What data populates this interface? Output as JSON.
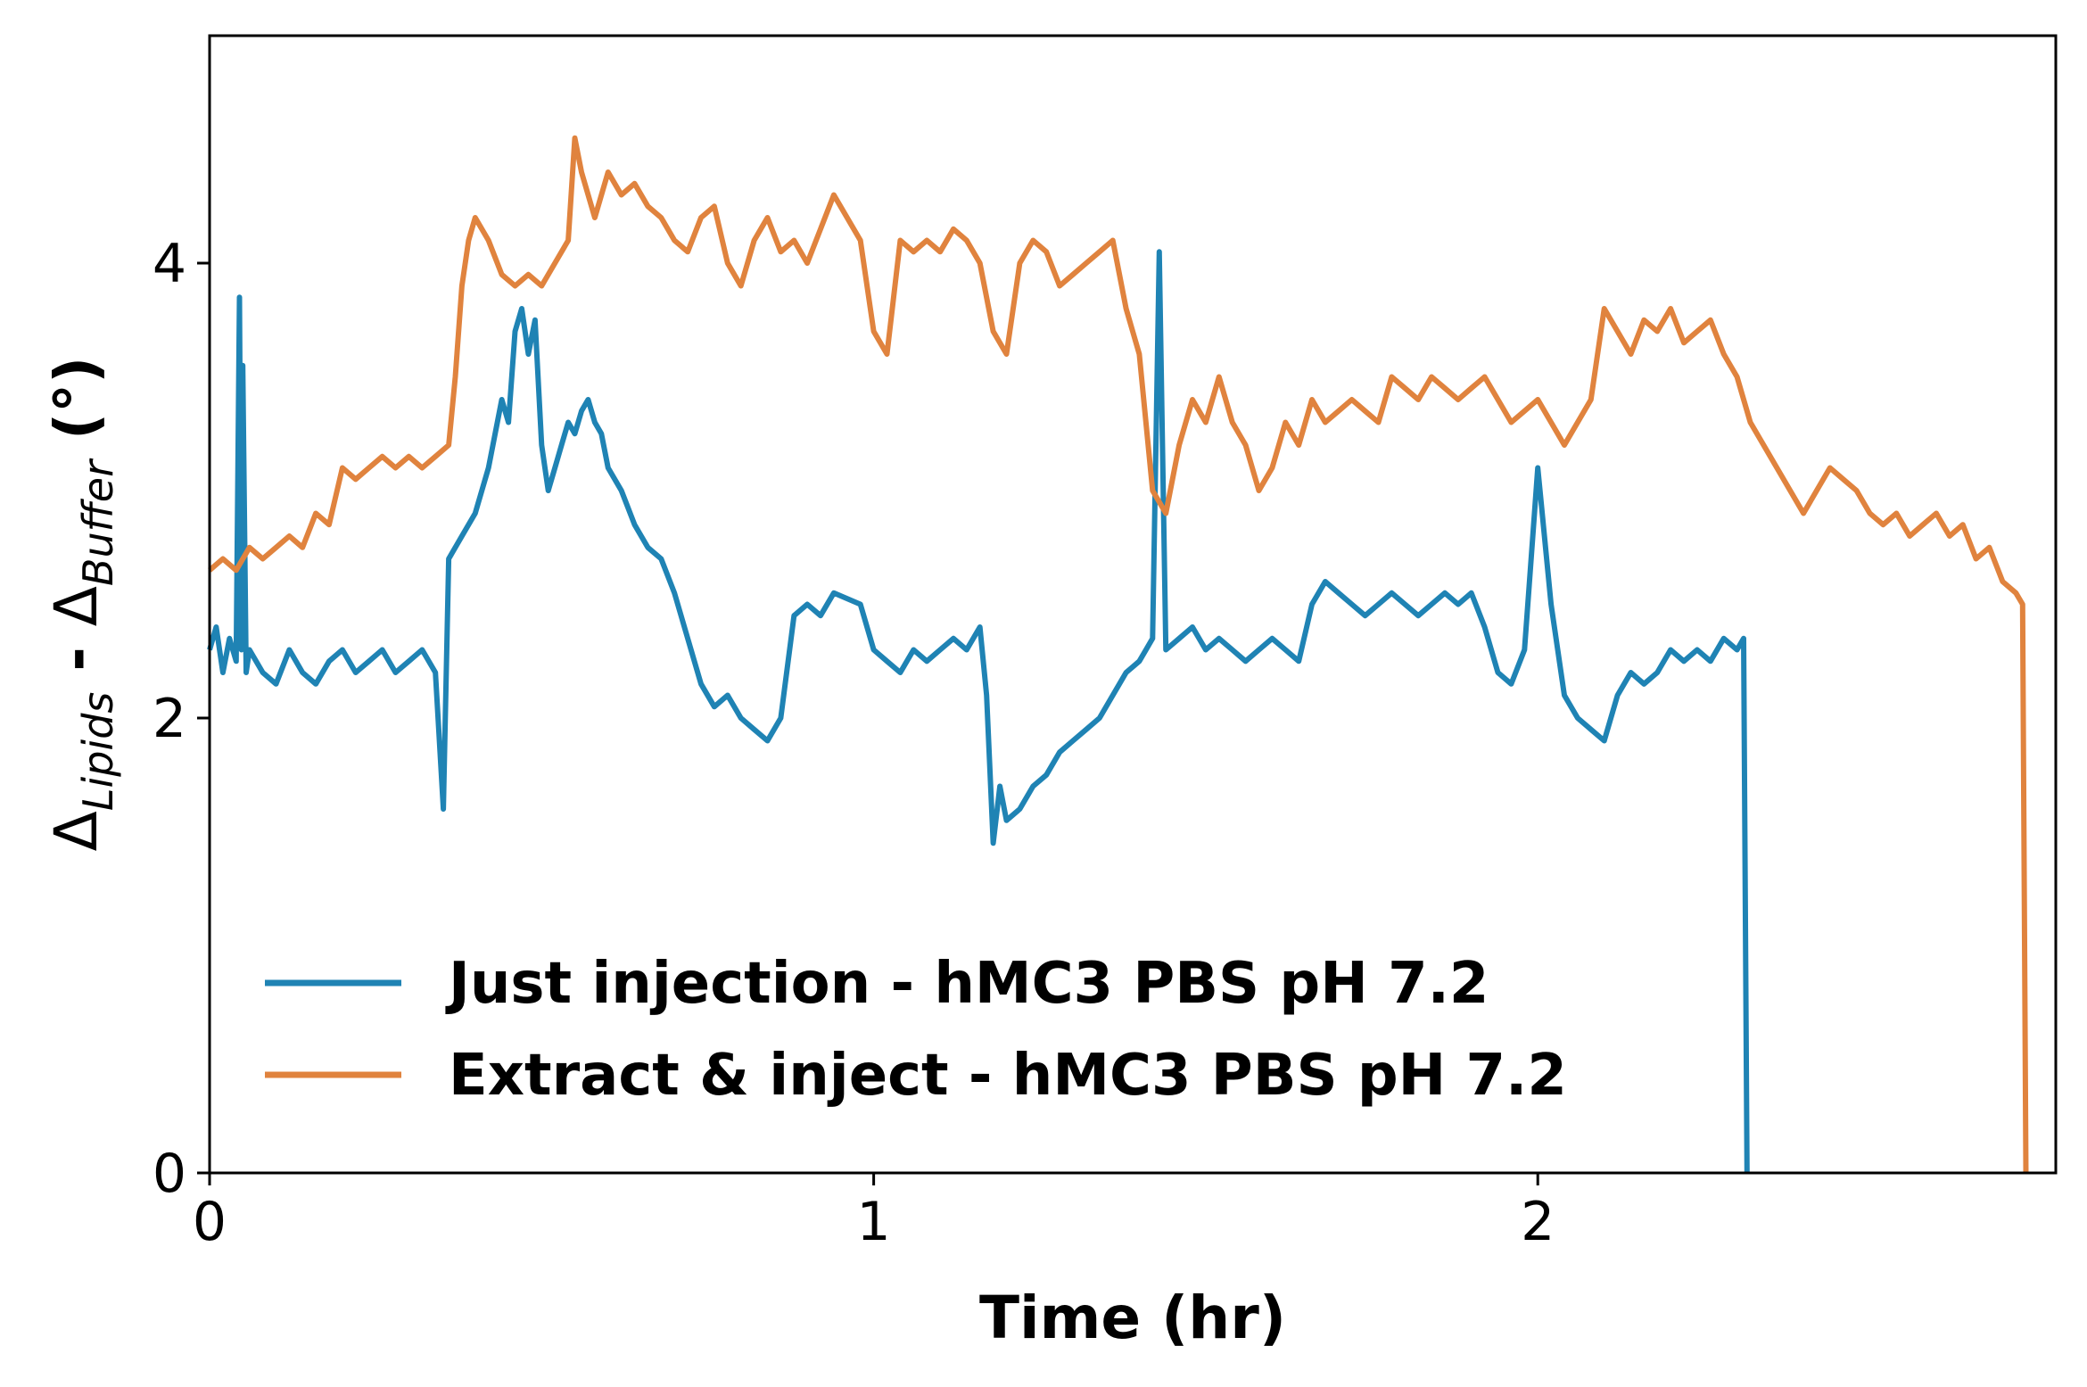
{
  "chart_data": {
    "type": "line",
    "title": "",
    "xlabel": "Time (hr)",
    "ylabel": {
      "delta": "Δ",
      "sub1": "Lipids",
      "dash": " - ",
      "sub2": "Buffer",
      "unit": " (°)"
    },
    "xlim": [
      0,
      2.78
    ],
    "ylim": [
      0,
      5.0
    ],
    "x_ticks": [
      0,
      1,
      2
    ],
    "y_ticks": [
      0,
      2,
      4
    ],
    "grid": false,
    "legend_position": "lower-left",
    "series": [
      {
        "name": "Just injection - hMC3 PBS pH 7.2",
        "color": "#1f83b4",
        "x": [
          0,
          0.01,
          0.02,
          0.03,
          0.04,
          0.045,
          0.048,
          0.05,
          0.055,
          0.06,
          0.08,
          0.1,
          0.12,
          0.14,
          0.16,
          0.18,
          0.2,
          0.22,
          0.24,
          0.26,
          0.28,
          0.3,
          0.32,
          0.34,
          0.352,
          0.36,
          0.37,
          0.38,
          0.4,
          0.42,
          0.44,
          0.45,
          0.46,
          0.47,
          0.48,
          0.49,
          0.5,
          0.51,
          0.52,
          0.53,
          0.54,
          0.55,
          0.56,
          0.57,
          0.58,
          0.59,
          0.6,
          0.62,
          0.64,
          0.66,
          0.68,
          0.7,
          0.72,
          0.74,
          0.76,
          0.78,
          0.8,
          0.82,
          0.84,
          0.86,
          0.88,
          0.9,
          0.92,
          0.94,
          0.98,
          1.0,
          1.02,
          1.04,
          1.06,
          1.08,
          1.1,
          1.12,
          1.14,
          1.16,
          1.17,
          1.18,
          1.19,
          1.2,
          1.22,
          1.24,
          1.26,
          1.28,
          1.3,
          1.32,
          1.34,
          1.36,
          1.38,
          1.4,
          1.41,
          1.42,
          1.43,
          1.44,
          1.46,
          1.48,
          1.5,
          1.52,
          1.54,
          1.56,
          1.58,
          1.6,
          1.62,
          1.64,
          1.66,
          1.68,
          1.7,
          1.72,
          1.74,
          1.76,
          1.78,
          1.8,
          1.82,
          1.84,
          1.86,
          1.88,
          1.9,
          1.92,
          1.94,
          1.96,
          1.98,
          2.0,
          2.02,
          2.04,
          2.06,
          2.08,
          2.1,
          2.12,
          2.14,
          2.16,
          2.18,
          2.2,
          2.22,
          2.24,
          2.26,
          2.28,
          2.3,
          2.31,
          2.315
        ],
        "y": [
          2.3,
          2.4,
          2.2,
          2.35,
          2.25,
          3.85,
          2.3,
          3.55,
          2.2,
          2.3,
          2.2,
          2.15,
          2.3,
          2.2,
          2.15,
          2.25,
          2.3,
          2.2,
          2.25,
          2.3,
          2.2,
          2.25,
          2.3,
          2.2,
          1.6,
          2.7,
          2.75,
          2.8,
          2.9,
          3.1,
          3.4,
          3.3,
          3.7,
          3.8,
          3.6,
          3.75,
          3.2,
          3.0,
          3.1,
          3.2,
          3.3,
          3.25,
          3.35,
          3.4,
          3.3,
          3.25,
          3.1,
          3.0,
          2.85,
          2.75,
          2.7,
          2.55,
          2.35,
          2.15,
          2.05,
          2.1,
          2.0,
          1.95,
          1.9,
          2.0,
          2.45,
          2.5,
          2.45,
          2.55,
          2.5,
          2.3,
          2.25,
          2.2,
          2.3,
          2.25,
          2.3,
          2.35,
          2.3,
          2.4,
          2.1,
          1.45,
          1.7,
          1.55,
          1.6,
          1.7,
          1.75,
          1.85,
          1.9,
          1.95,
          2.0,
          2.1,
          2.2,
          2.25,
          2.3,
          2.35,
          4.05,
          2.3,
          2.35,
          2.4,
          2.3,
          2.35,
          2.3,
          2.25,
          2.3,
          2.35,
          2.3,
          2.25,
          2.5,
          2.6,
          2.55,
          2.5,
          2.45,
          2.5,
          2.55,
          2.5,
          2.45,
          2.5,
          2.55,
          2.5,
          2.55,
          2.4,
          2.2,
          2.15,
          2.3,
          3.1,
          2.5,
          2.1,
          2.0,
          1.95,
          1.9,
          2.1,
          2.2,
          2.15,
          2.2,
          2.3,
          2.25,
          2.3,
          2.25,
          2.35,
          2.3,
          2.35,
          0
        ]
      },
      {
        "name": "Extract & inject - hMC3 PBS pH 7.2",
        "color": "#e0833e",
        "x": [
          0,
          0.02,
          0.04,
          0.06,
          0.08,
          0.1,
          0.12,
          0.14,
          0.16,
          0.18,
          0.2,
          0.22,
          0.24,
          0.26,
          0.28,
          0.3,
          0.32,
          0.34,
          0.36,
          0.37,
          0.38,
          0.39,
          0.4,
          0.42,
          0.44,
          0.46,
          0.48,
          0.5,
          0.52,
          0.54,
          0.55,
          0.56,
          0.58,
          0.6,
          0.62,
          0.64,
          0.66,
          0.68,
          0.7,
          0.72,
          0.74,
          0.76,
          0.78,
          0.8,
          0.82,
          0.84,
          0.86,
          0.88,
          0.9,
          0.92,
          0.94,
          0.96,
          0.98,
          1.0,
          1.02,
          1.04,
          1.06,
          1.08,
          1.1,
          1.12,
          1.14,
          1.16,
          1.18,
          1.2,
          1.22,
          1.24,
          1.26,
          1.28,
          1.3,
          1.32,
          1.34,
          1.36,
          1.38,
          1.4,
          1.42,
          1.44,
          1.46,
          1.48,
          1.5,
          1.52,
          1.54,
          1.56,
          1.58,
          1.6,
          1.62,
          1.64,
          1.66,
          1.68,
          1.7,
          1.72,
          1.74,
          1.76,
          1.78,
          1.8,
          1.82,
          1.84,
          1.86,
          1.88,
          1.9,
          1.92,
          1.94,
          1.96,
          1.98,
          2.0,
          2.02,
          2.04,
          2.06,
          2.08,
          2.1,
          2.12,
          2.14,
          2.16,
          2.18,
          2.2,
          2.22,
          2.24,
          2.26,
          2.28,
          2.3,
          2.32,
          2.34,
          2.36,
          2.38,
          2.4,
          2.42,
          2.44,
          2.46,
          2.48,
          2.5,
          2.52,
          2.54,
          2.56,
          2.58,
          2.6,
          2.62,
          2.64,
          2.66,
          2.68,
          2.7,
          2.72,
          2.73,
          2.735
        ],
        "y": [
          2.65,
          2.7,
          2.65,
          2.75,
          2.7,
          2.75,
          2.8,
          2.75,
          2.9,
          2.85,
          3.1,
          3.05,
          3.1,
          3.15,
          3.1,
          3.15,
          3.1,
          3.15,
          3.2,
          3.5,
          3.9,
          4.1,
          4.2,
          4.1,
          3.95,
          3.9,
          3.95,
          3.9,
          4.0,
          4.1,
          4.55,
          4.4,
          4.2,
          4.4,
          4.3,
          4.35,
          4.25,
          4.2,
          4.1,
          4.05,
          4.2,
          4.25,
          4.0,
          3.9,
          4.1,
          4.2,
          4.05,
          4.1,
          4.0,
          4.15,
          4.3,
          4.2,
          4.1,
          3.7,
          3.6,
          4.1,
          4.05,
          4.1,
          4.05,
          4.15,
          4.1,
          4.0,
          3.7,
          3.6,
          4.0,
          4.1,
          4.05,
          3.9,
          3.95,
          4.0,
          4.05,
          4.1,
          3.8,
          3.6,
          3.0,
          2.9,
          3.2,
          3.4,
          3.3,
          3.5,
          3.3,
          3.2,
          3.0,
          3.1,
          3.3,
          3.2,
          3.4,
          3.3,
          3.35,
          3.4,
          3.35,
          3.3,
          3.5,
          3.45,
          3.4,
          3.5,
          3.45,
          3.4,
          3.45,
          3.5,
          3.4,
          3.3,
          3.35,
          3.4,
          3.3,
          3.2,
          3.3,
          3.4,
          3.8,
          3.7,
          3.6,
          3.75,
          3.7,
          3.8,
          3.65,
          3.7,
          3.75,
          3.6,
          3.5,
          3.3,
          3.2,
          3.1,
          3.0,
          2.9,
          3.0,
          3.1,
          3.05,
          3.0,
          2.9,
          2.85,
          2.9,
          2.8,
          2.85,
          2.9,
          2.8,
          2.85,
          2.7,
          2.75,
          2.6,
          2.55,
          2.5,
          0
        ]
      }
    ]
  }
}
